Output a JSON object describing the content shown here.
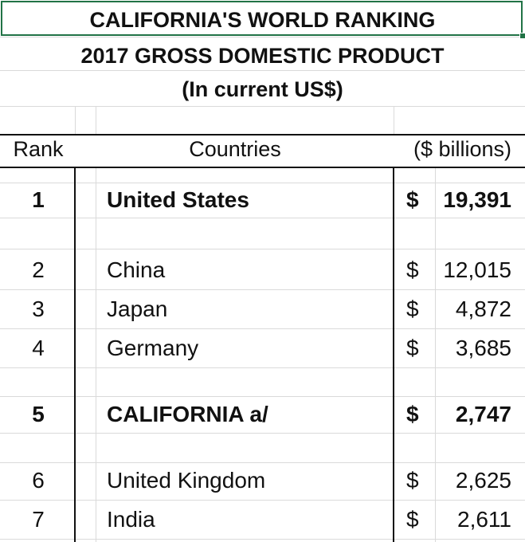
{
  "titles": {
    "line1": "CALIFORNIA'S WORLD RANKING",
    "line2": "2017 GROSS DOMESTIC PRODUCT",
    "line3": "(In current US$)"
  },
  "headers": {
    "rank": "Rank",
    "countries": "Countries",
    "value": "($ billions)"
  },
  "rows": [
    {
      "rank": "1",
      "country": "United States",
      "currency": "$",
      "value": "19,391",
      "bold": true
    },
    {
      "rank": "2",
      "country": "China",
      "currency": "$",
      "value": "12,015",
      "bold": false
    },
    {
      "rank": "3",
      "country": "Japan",
      "currency": "$",
      "value": "4,872",
      "bold": false
    },
    {
      "rank": "4",
      "country": "Germany",
      "currency": "$",
      "value": "3,685",
      "bold": false
    },
    {
      "rank": "5",
      "country": "CALIFORNIA a/",
      "currency": "$",
      "value": "2,747",
      "bold": true
    },
    {
      "rank": "6",
      "country": "United Kingdom",
      "currency": "$",
      "value": "2,625",
      "bold": false
    },
    {
      "rank": "7",
      "country": "India",
      "currency": "$",
      "value": "2,611",
      "bold": false
    }
  ]
}
